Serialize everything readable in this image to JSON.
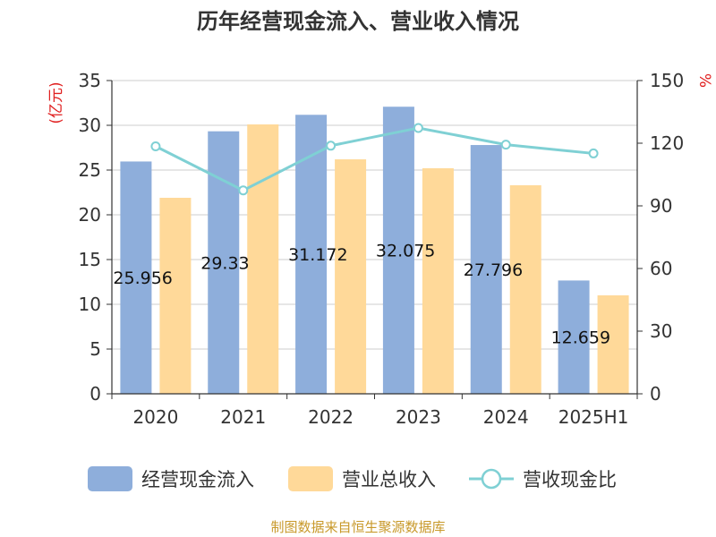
{
  "chart_data": {
    "type": "bar",
    "title": "历年经营现金流入、营业收入情况",
    "categories": [
      "2020",
      "2021",
      "2022",
      "2023",
      "2024",
      "2025H1"
    ],
    "left_axis": {
      "unit": "(亿元)",
      "ylim": [
        0,
        35
      ],
      "ticks": [
        0,
        5,
        10,
        15,
        20,
        25,
        30,
        35
      ]
    },
    "right_axis": {
      "unit": "%",
      "ylim": [
        0,
        150
      ],
      "ticks": [
        0,
        30,
        60,
        90,
        120,
        150
      ]
    },
    "series": [
      {
        "name": "经营现金流入",
        "type": "bar",
        "axis": "left",
        "color": "#8eaedb",
        "values": [
          25.956,
          29.33,
          31.172,
          32.075,
          27.796,
          12.659
        ],
        "labels": [
          "25.956",
          "29.33",
          "31.172",
          "32.075",
          "27.796",
          "12.659"
        ]
      },
      {
        "name": "营业总收入",
        "type": "bar",
        "axis": "left",
        "color": "#ffd999",
        "values": [
          21.9,
          30.1,
          26.2,
          25.2,
          23.3,
          11.0
        ]
      },
      {
        "name": "营收现金比",
        "type": "line",
        "axis": "right",
        "color": "#7fd0d4",
        "values": [
          118.5,
          97.4,
          118.8,
          127.3,
          119.3,
          115.1
        ]
      }
    ],
    "grid": true,
    "legend": "bottom"
  },
  "source": "制图数据来自恒生聚源数据库"
}
